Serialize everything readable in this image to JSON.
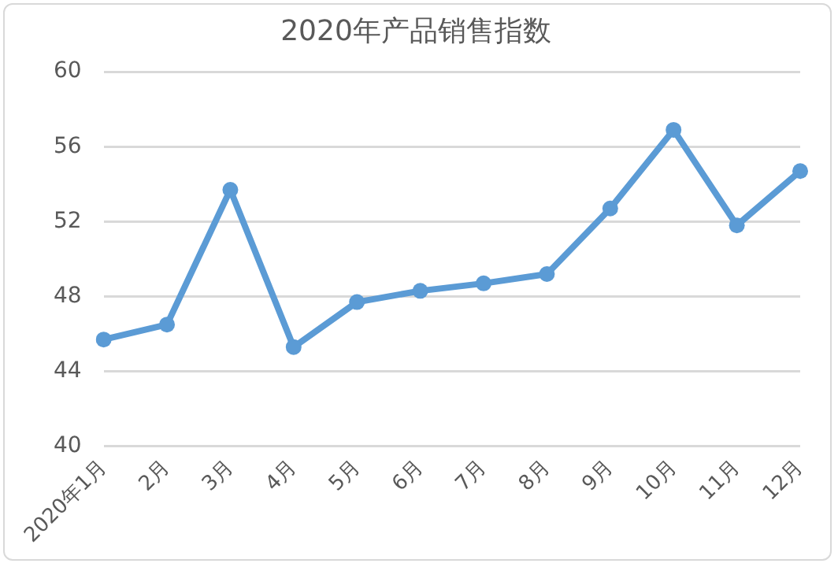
{
  "chart_data": {
    "type": "line",
    "title": "2020年产品销售指数",
    "categories": [
      "2020年1月",
      "2月",
      "3月",
      "4月",
      "5月",
      "6月",
      "7月",
      "8月",
      "9月",
      "10月",
      "11月",
      "12月"
    ],
    "series": [
      {
        "color": "#5b9bd5",
        "values": [
          45.7,
          46.5,
          53.7,
          45.3,
          47.7,
          48.3,
          48.7,
          49.2,
          52.7,
          56.9,
          51.8,
          54.7
        ]
      }
    ],
    "ylim": [
      40,
      60
    ],
    "yticks": [
      40,
      44,
      48,
      52,
      56,
      60
    ],
    "grid": "y",
    "legend": false,
    "marker": "circle",
    "line_style": "solid"
  }
}
